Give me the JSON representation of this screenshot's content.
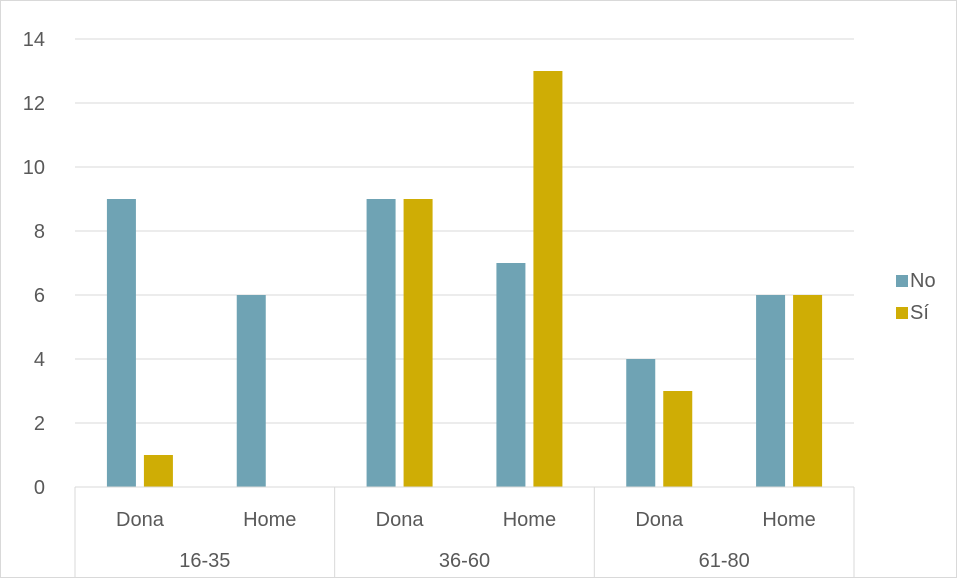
{
  "chart_data": {
    "type": "bar",
    "groups": [
      {
        "label": "16-35",
        "subcategories": [
          "Dona",
          "Home"
        ],
        "values": {
          "No": [
            9,
            6
          ],
          "Sí": [
            1,
            0
          ]
        }
      },
      {
        "label": "36-60",
        "subcategories": [
          "Dona",
          "Home"
        ],
        "values": {
          "No": [
            9,
            7
          ],
          "Sí": [
            9,
            13
          ]
        }
      },
      {
        "label": "61-80",
        "subcategories": [
          "Dona",
          "Home"
        ],
        "values": {
          "No": [
            4,
            6
          ],
          "Sí": [
            3,
            6
          ]
        }
      }
    ],
    "series": [
      {
        "name": "No",
        "color": "#6fa3b4"
      },
      {
        "name": "Sí",
        "color": "#cfad05"
      }
    ],
    "ylim": [
      0,
      14
    ],
    "yticks": [
      "0",
      "2",
      "4",
      "6",
      "8",
      "10",
      "12",
      "14"
    ],
    "grid": true,
    "legend_position": "right"
  }
}
